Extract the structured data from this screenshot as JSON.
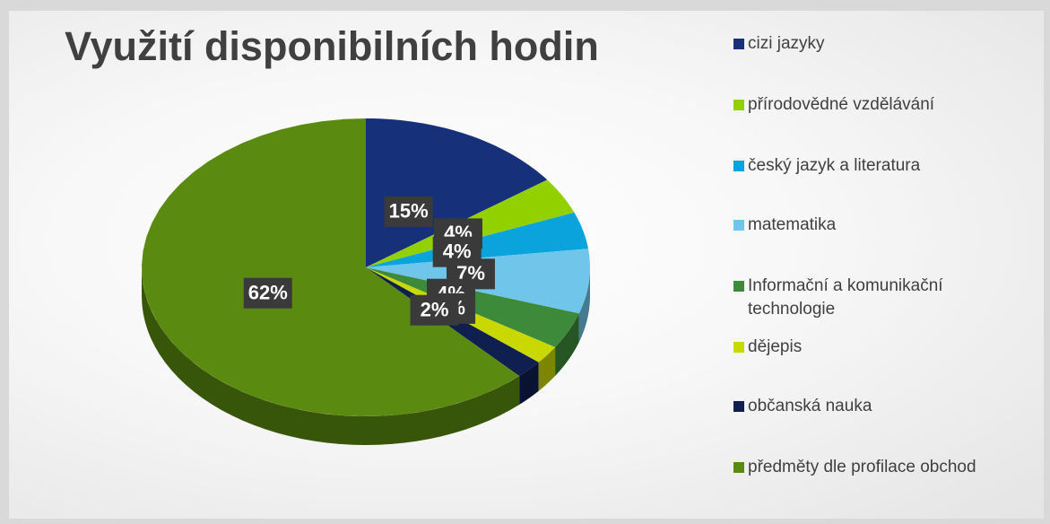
{
  "chart_data": {
    "type": "pie",
    "title": "Využití disponibilních hodin",
    "categories": [
      "cizi jazyky",
      "přírodovědné vzdělávání",
      "český jazyk a literatura",
      "matematika",
      "Informační a komunikační technologie",
      "dějepis",
      "občanská nauka",
      "předměty dle profilace obchod"
    ],
    "values": [
      15,
      4,
      4,
      7,
      4,
      2,
      2,
      62
    ],
    "value_labels": [
      "15%",
      "4%",
      "4%",
      "7%",
      "4%",
      "2%",
      "2%",
      "62%"
    ],
    "colors": [
      "#16307a",
      "#92d000",
      "#0ba3dc",
      "#6fc6ea",
      "#3d8a3a",
      "#c8d800",
      "#0f1f4f",
      "#5b8a10"
    ],
    "legend": "right"
  }
}
